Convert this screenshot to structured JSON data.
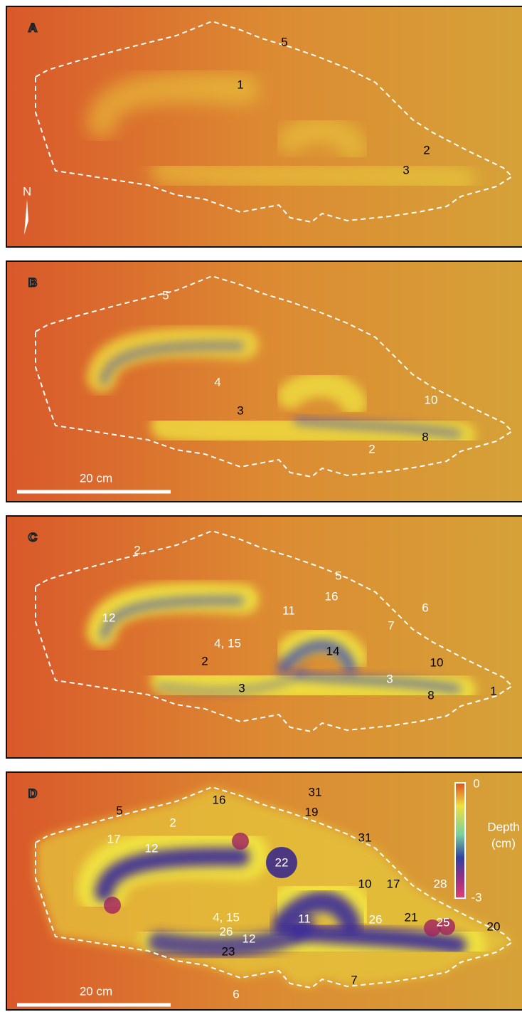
{
  "panels": [
    {
      "letter": "A",
      "north": "N",
      "labels": [
        "5",
        "1",
        "2",
        "3"
      ]
    },
    {
      "letter": "B",
      "scale_bar": "20 cm",
      "labels": [
        "5",
        "4",
        "10",
        "3",
        "8",
        "2"
      ]
    },
    {
      "letter": "C",
      "labels": [
        "5",
        "2",
        "16",
        "6",
        "12",
        "11",
        "7",
        "4, 15",
        "14",
        "10",
        "2",
        "3",
        "3",
        "1",
        "8"
      ]
    },
    {
      "letter": "D",
      "scale_bar": "20 cm",
      "colorbar": {
        "max": "0",
        "title": "Depth",
        "unit": "(cm)",
        "min": "-3"
      },
      "labels": [
        "31",
        "16",
        "5",
        "19",
        "2",
        "17",
        "31",
        "12",
        "22",
        "28",
        "10",
        "17",
        "4, 15",
        "11",
        "26",
        "21",
        "25",
        "20",
        "26",
        "12",
        "23",
        "7",
        "6"
      ]
    }
  ]
}
